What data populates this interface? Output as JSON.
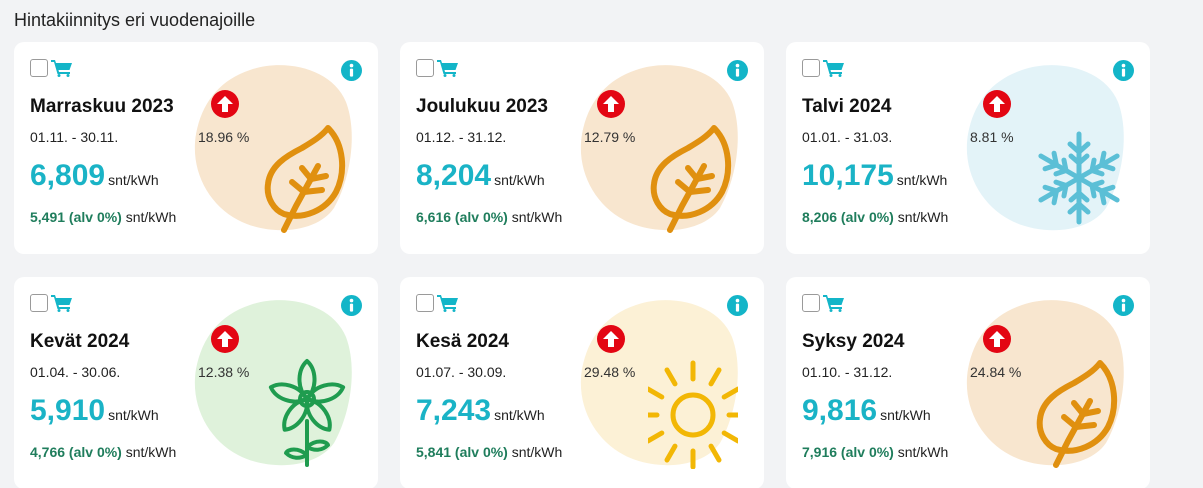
{
  "page": {
    "title": "Hintakiinnitys eri vuodenajoille"
  },
  "colors": {
    "price": "#1ab3c6",
    "vat": "#1f7d5c",
    "info": "#13b5c8",
    "cart": "#13b5c8",
    "arrow_badge": "#e30613"
  },
  "cards": [
    {
      "title": "Marraskuu 2023",
      "dates": "01.11. - 30.11.",
      "change": "18.96 %",
      "price": "6,809",
      "unit": "snt/kWh",
      "vat_price": "5,491 (alv 0%)",
      "vat_unit": "snt/kWh",
      "icon": "leaf-icon",
      "blob_color": "#f8e6cf",
      "icon_color": "#e0900f"
    },
    {
      "title": "Joulukuu 2023",
      "dates": "01.12. - 31.12.",
      "change": "12.79 %",
      "price": "8,204",
      "unit": "snt/kWh",
      "vat_price": "6,616 (alv 0%)",
      "vat_unit": "snt/kWh",
      "icon": "leaf-icon",
      "blob_color": "#f8e6cf",
      "icon_color": "#e0900f"
    },
    {
      "title": "Talvi 2024",
      "dates": "01.01. - 31.03.",
      "change": "8.81 %",
      "price": "10,175",
      "unit": "snt/kWh",
      "vat_price": "8,206 (alv 0%)",
      "vat_unit": "snt/kWh",
      "icon": "snowflake-icon",
      "blob_color": "#e3f3f8",
      "icon_color": "#5bbfd6"
    },
    {
      "title": "Kevät 2024",
      "dates": "01.04. - 30.06.",
      "change": "12.38 %",
      "price": "5,910",
      "unit": "snt/kWh",
      "vat_price": "4,766 (alv 0%)",
      "vat_unit": "snt/kWh",
      "icon": "flower-icon",
      "blob_color": "#dff2db",
      "icon_color": "#1f9c4f"
    },
    {
      "title": "Kesä 2024",
      "dates": "01.07. - 30.09.",
      "change": "29.48 %",
      "price": "7,243",
      "unit": "snt/kWh",
      "vat_price": "5,841 (alv 0%)",
      "vat_unit": "snt/kWh",
      "icon": "sun-icon",
      "blob_color": "#fcf1d6",
      "icon_color": "#f2b705"
    },
    {
      "title": "Syksy 2024",
      "dates": "01.10. - 31.12.",
      "change": "24.84 %",
      "price": "9,816",
      "unit": "snt/kWh",
      "vat_price": "7,916 (alv 0%)",
      "vat_unit": "snt/kWh",
      "icon": "leaf-icon",
      "blob_color": "#f8e6cf",
      "icon_color": "#e0900f"
    }
  ]
}
